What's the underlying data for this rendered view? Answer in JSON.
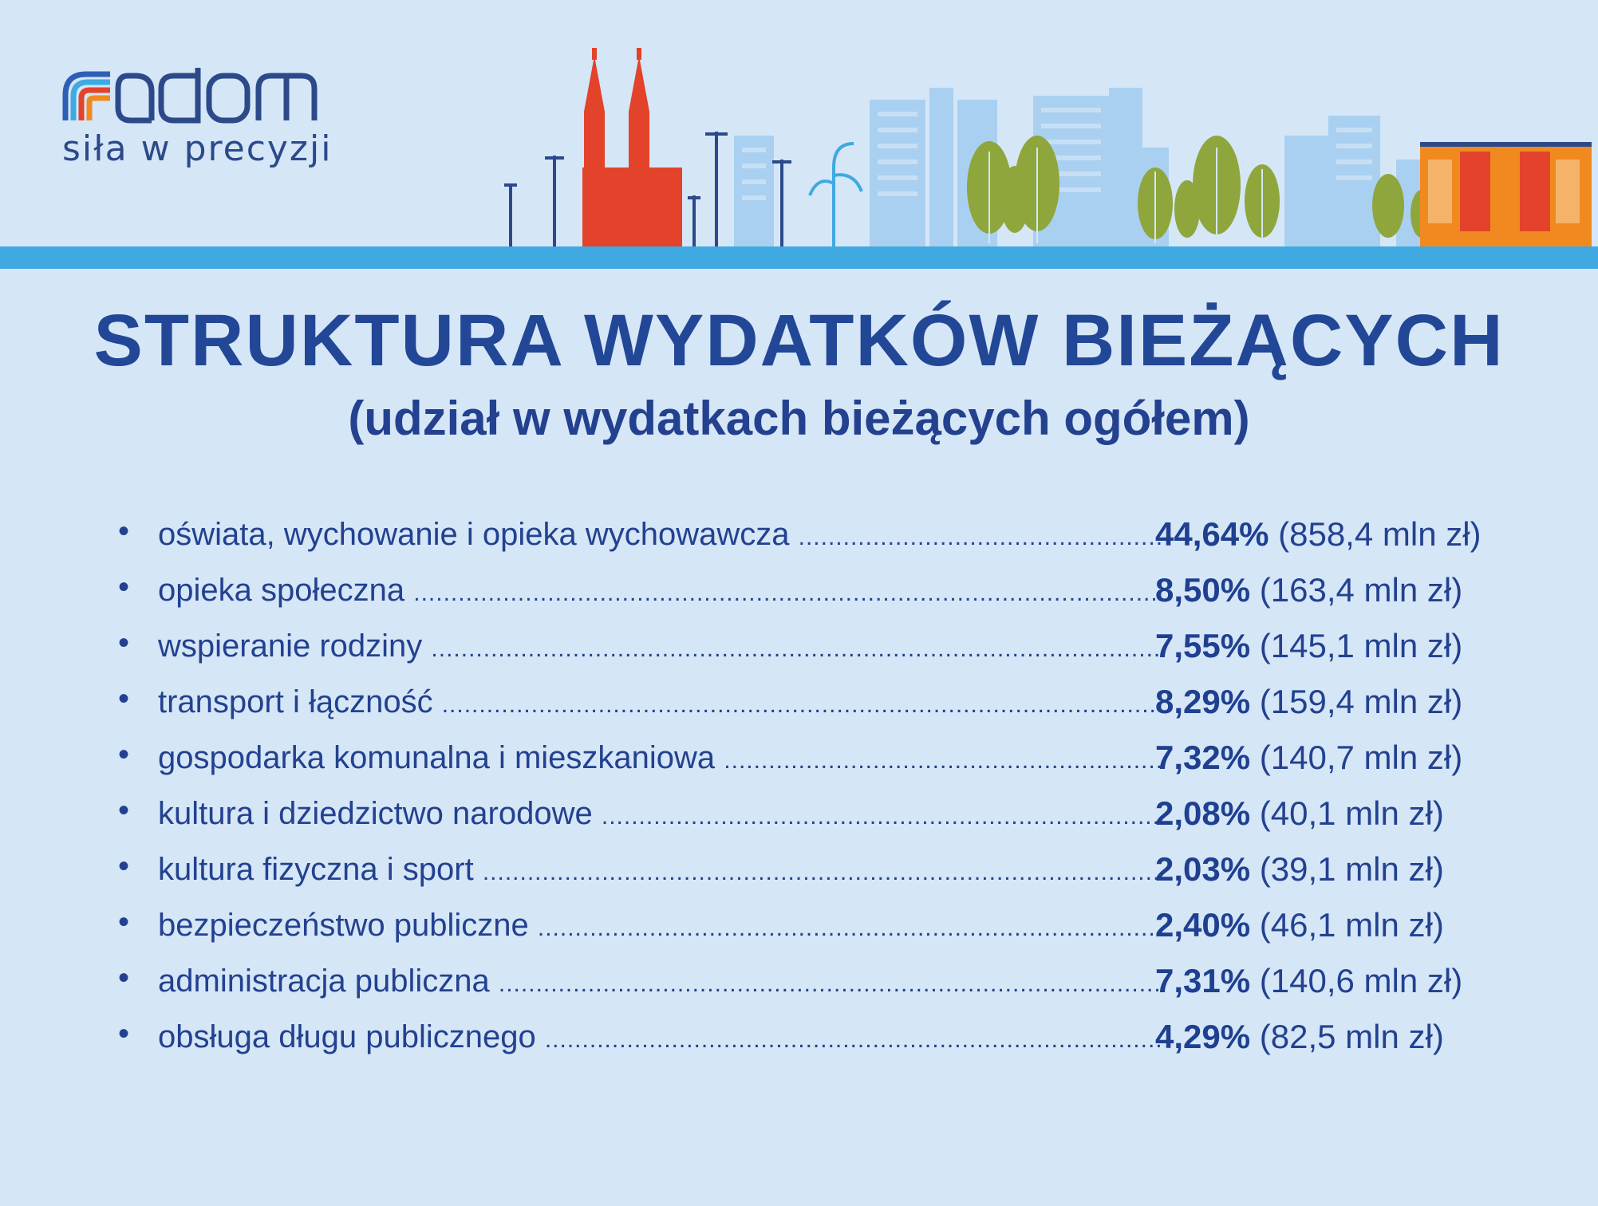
{
  "logo": {
    "name": "radom",
    "tagline": "siła w precyzji"
  },
  "title": "STRUKTURA WYDATKÓW BIEŻĄCYCH",
  "subtitle": "(udział w wydatkach bieżących ogółem)",
  "colors": {
    "background": "#d5e6f7",
    "text": "#23418f",
    "ground_strip": "#3fa9e2",
    "church": "#e2432a",
    "trees": "#8ea63c",
    "building_orange": "#f08a20"
  },
  "items": [
    {
      "label": "oświata, wychowanie i opieka wychowawcza",
      "percent": "44,64%",
      "amount": "(858,4 mln zł)"
    },
    {
      "label": "opieka społeczna",
      "percent": "8,50%",
      "amount": "(163,4 mln zł)"
    },
    {
      "label": "wspieranie rodziny",
      "percent": "7,55%",
      "amount": "(145,1 mln zł)"
    },
    {
      "label": "transport i łączność",
      "percent": "8,29%",
      "amount": " (159,4 mln zł)"
    },
    {
      "label": "gospodarka komunalna i mieszkaniowa",
      "percent": "7,32%",
      "amount": "(140,7 mln zł)"
    },
    {
      "label": "kultura i dziedzictwo narodowe",
      "percent": "2,08%",
      "amount": " (40,1 mln zł)"
    },
    {
      "label": "kultura fizyczna i sport",
      "percent": "2,03%",
      "amount": "(39,1 mln zł)"
    },
    {
      "label": "bezpieczeństwo publiczne",
      "percent": "2,40%",
      "amount": "(46,1 mln zł)"
    },
    {
      "label": "administracja publiczna",
      "percent": "7,31%",
      "amount": "(140,6 mln zł)"
    },
    {
      "label": "obsługa długu publicznego",
      "percent": "4,29%",
      "amount": "(82,5 mln zł)"
    }
  ]
}
